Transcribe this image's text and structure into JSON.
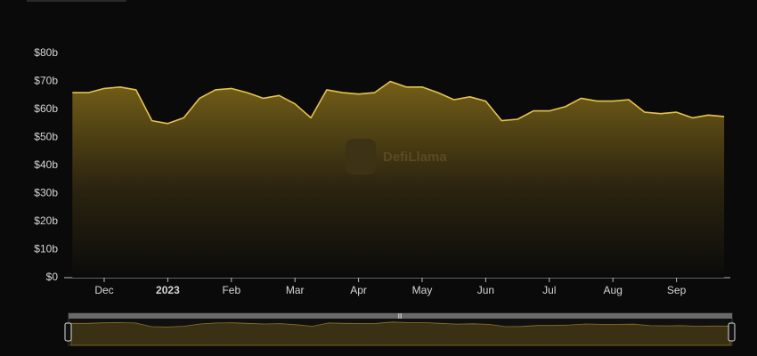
{
  "chart_data": {
    "type": "area",
    "watermark": "DefiLlama",
    "categories": [
      null,
      null,
      "Dec",
      null,
      null,
      null,
      "2023",
      null,
      null,
      null,
      "Feb",
      null,
      null,
      null,
      "Mar",
      null,
      null,
      null,
      "Apr",
      null,
      null,
      null,
      "May",
      null,
      null,
      null,
      "Jun",
      null,
      null,
      null,
      "Jul",
      null,
      null,
      null,
      "Aug",
      null,
      null,
      null,
      "Sep",
      null,
      null,
      null
    ],
    "series": [
      {
        "color": "#e6c34a",
        "values": [
          66,
          66,
          67.5,
          68,
          67,
          56,
          55,
          57,
          64,
          67,
          67.5,
          66,
          64,
          65,
          62,
          57,
          67,
          66,
          65.5,
          66,
          70,
          68,
          68,
          66,
          63.5,
          64.5,
          63,
          56,
          56.5,
          59.5,
          59.5,
          61,
          64,
          63,
          63,
          63.5,
          59,
          58.5,
          59,
          57,
          58,
          57.5
        ]
      }
    ],
    "ylim": [
      0,
      80
    ],
    "yticks": [
      {
        "value": 0,
        "label": "$0"
      },
      {
        "value": 10,
        "label": "$10b"
      },
      {
        "value": 20,
        "label": "$20b"
      },
      {
        "value": 30,
        "label": "$30b"
      },
      {
        "value": 40,
        "label": "$40b"
      },
      {
        "value": 50,
        "label": "$50b"
      },
      {
        "value": 60,
        "label": "$60b"
      },
      {
        "value": 70,
        "label": "$70b"
      },
      {
        "value": 80,
        "label": "$80b"
      }
    ],
    "grid": false
  }
}
